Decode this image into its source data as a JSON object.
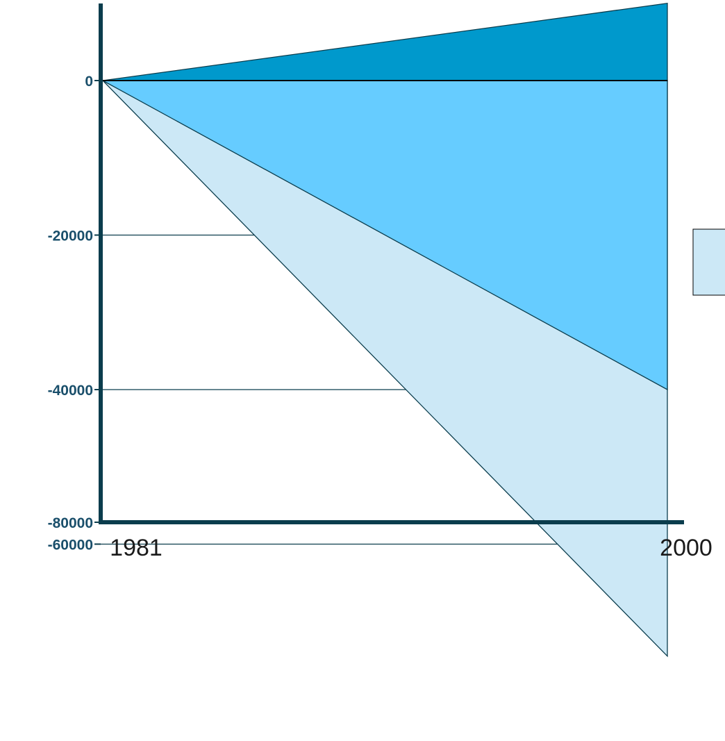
{
  "chart_data": {
    "type": "area",
    "x": [
      "1981",
      "2000"
    ],
    "ylim": [
      -80000,
      10000
    ],
    "yticks": [
      0,
      -20000,
      -40000,
      -60000,
      -80000
    ],
    "ytick_labels": [
      "0",
      "-20000",
      "-40000",
      "-60000",
      "-80000"
    ],
    "grid": true,
    "legend": "right",
    "series": [
      {
        "color": "#0099cc",
        "values": [
          0,
          10000
        ]
      },
      {
        "color": "#66ccff",
        "values": [
          0,
          -40000
        ]
      },
      {
        "color": "#cce8f6",
        "values": [
          0,
          -74500
        ]
      }
    ],
    "colors": {
      "axis": "#0b3d4d",
      "grid": "#0b3d4d",
      "tick_label": "#1a4f6b"
    }
  }
}
